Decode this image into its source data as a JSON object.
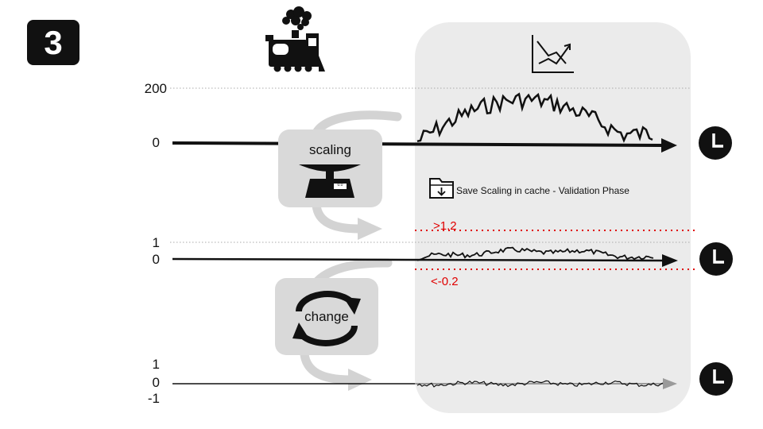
{
  "step": {
    "number": "3"
  },
  "icons": {
    "train": "steam-locomotive-icon",
    "chart": "chart-trend-icon",
    "scale": "weighing-scale-icon",
    "cache": "folder-download-icon",
    "change": "refresh-cycle-icon",
    "clock": "clock-icon"
  },
  "axes": {
    "raw": {
      "top_tick": "200",
      "zero_tick": "0"
    },
    "scaled": {
      "top_tick": "1",
      "zero_tick": "0"
    },
    "change": {
      "top_tick": "1",
      "zero_tick": "0",
      "bottom_tick": "-1"
    }
  },
  "operations": {
    "scaling": {
      "label": "scaling",
      "scale_display": "0.0"
    },
    "change": {
      "label": "change"
    }
  },
  "cache_note": {
    "text": "Save Scaling in cache - Validation Phase"
  },
  "thresholds": {
    "upper": ">1.2",
    "lower": "<-0.2"
  },
  "colors": {
    "threshold": "#e00000",
    "panel": "#ebebeb",
    "op_box": "#d9d9d9",
    "flow_arrow": "#d3d3d3"
  }
}
